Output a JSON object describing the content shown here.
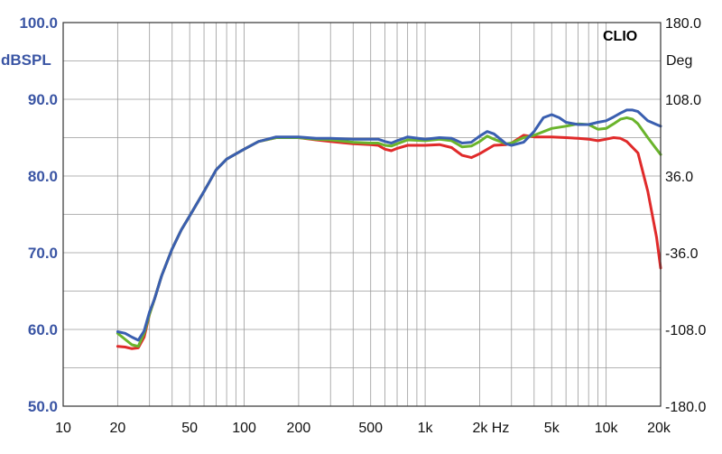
{
  "chart_data": {
    "type": "line",
    "brand_label": "CLIO",
    "x_scale": "log",
    "xlim": [
      10,
      20000
    ],
    "ylim": [
      50,
      100
    ],
    "y2lim": [
      -180,
      180
    ],
    "ylabel": "dBSPL",
    "y2label": "Deg",
    "grid": true,
    "x_ticks": [
      {
        "value": 10,
        "label": "10"
      },
      {
        "value": 20,
        "label": "20"
      },
      {
        "value": 50,
        "label": "50"
      },
      {
        "value": 100,
        "label": "100"
      },
      {
        "value": 200,
        "label": "200"
      },
      {
        "value": 500,
        "label": "500"
      },
      {
        "value": 1000,
        "label": "1k"
      },
      {
        "value": 2000,
        "label": "2k Hz"
      },
      {
        "value": 5000,
        "label": "5k"
      },
      {
        "value": 10000,
        "label": "10k"
      },
      {
        "value": 20000,
        "label": "20k"
      }
    ],
    "y_ticks": [
      {
        "value": 100,
        "label": "100.0"
      },
      {
        "value": 90,
        "label": "90.0"
      },
      {
        "value": 80,
        "label": "80.0"
      },
      {
        "value": 70,
        "label": "70.0"
      },
      {
        "value": 60,
        "label": "60.0"
      },
      {
        "value": 50,
        "label": "50.0"
      }
    ],
    "y2_ticks": [
      {
        "value": 180,
        "label": "180.0"
      },
      {
        "value": 108,
        "label": "108.0"
      },
      {
        "value": 36,
        "label": "36.0"
      },
      {
        "value": -36,
        "label": "-36.0"
      },
      {
        "value": -108,
        "label": "-108.0"
      },
      {
        "value": -180,
        "label": "-180.0"
      }
    ],
    "colors": {
      "grid": "#9a9a9a",
      "axis": "#333333",
      "left_axis_text": "#3a55a4"
    },
    "series": [
      {
        "color": "#e02a2a",
        "points": [
          [
            20,
            57.8
          ],
          [
            22,
            57.7
          ],
          [
            24,
            57.5
          ],
          [
            26,
            57.6
          ],
          [
            28,
            59
          ],
          [
            30,
            62
          ],
          [
            32,
            64
          ],
          [
            35,
            67
          ],
          [
            40,
            70.5
          ],
          [
            45,
            73
          ],
          [
            50,
            74.8
          ],
          [
            60,
            78
          ],
          [
            70,
            80.8
          ],
          [
            80,
            82.2
          ],
          [
            100,
            83.5
          ],
          [
            120,
            84.5
          ],
          [
            150,
            85
          ],
          [
            200,
            85
          ],
          [
            250,
            84.7
          ],
          [
            300,
            84.5
          ],
          [
            400,
            84.2
          ],
          [
            500,
            84.1
          ],
          [
            550,
            84
          ],
          [
            600,
            83.5
          ],
          [
            650,
            83.3
          ],
          [
            700,
            83.6
          ],
          [
            800,
            84
          ],
          [
            1000,
            84
          ],
          [
            1200,
            84.1
          ],
          [
            1400,
            83.7
          ],
          [
            1600,
            82.7
          ],
          [
            1800,
            82.4
          ],
          [
            2000,
            82.9
          ],
          [
            2400,
            84
          ],
          [
            2800,
            84.1
          ],
          [
            3000,
            84.3
          ],
          [
            3500,
            85.3
          ],
          [
            4000,
            85.1
          ],
          [
            5000,
            85.1
          ],
          [
            6000,
            85
          ],
          [
            7000,
            84.9
          ],
          [
            8000,
            84.8
          ],
          [
            9000,
            84.6
          ],
          [
            10000,
            84.8
          ],
          [
            11000,
            85
          ],
          [
            12000,
            84.9
          ],
          [
            13000,
            84.5
          ],
          [
            15000,
            83
          ],
          [
            17000,
            78
          ],
          [
            19000,
            72
          ],
          [
            20000,
            68
          ]
        ]
      },
      {
        "color": "#6ab42c",
        "points": [
          [
            20,
            59.5
          ],
          [
            22,
            58.7
          ],
          [
            24,
            58
          ],
          [
            26,
            57.8
          ],
          [
            28,
            59.5
          ],
          [
            30,
            62
          ],
          [
            32,
            64
          ],
          [
            35,
            67
          ],
          [
            40,
            70.5
          ],
          [
            45,
            73
          ],
          [
            50,
            74.8
          ],
          [
            60,
            78
          ],
          [
            70,
            80.8
          ],
          [
            80,
            82.2
          ],
          [
            100,
            83.5
          ],
          [
            120,
            84.5
          ],
          [
            150,
            85
          ],
          [
            200,
            85
          ],
          [
            250,
            84.8
          ],
          [
            300,
            84.7
          ],
          [
            400,
            84.4
          ],
          [
            500,
            84.3
          ],
          [
            550,
            84.3
          ],
          [
            600,
            84
          ],
          [
            650,
            83.9
          ],
          [
            700,
            84.2
          ],
          [
            800,
            84.7
          ],
          [
            1000,
            84.6
          ],
          [
            1200,
            84.8
          ],
          [
            1400,
            84.6
          ],
          [
            1600,
            83.8
          ],
          [
            1800,
            83.9
          ],
          [
            2000,
            84.5
          ],
          [
            2200,
            85.2
          ],
          [
            2400,
            84.8
          ],
          [
            2800,
            84.2
          ],
          [
            3000,
            84.3
          ],
          [
            3500,
            85
          ],
          [
            4000,
            85.3
          ],
          [
            5000,
            86.2
          ],
          [
            6000,
            86.5
          ],
          [
            7000,
            86.8
          ],
          [
            8000,
            86.7
          ],
          [
            9000,
            86.1
          ],
          [
            10000,
            86.2
          ],
          [
            11000,
            86.8
          ],
          [
            12000,
            87.4
          ],
          [
            13000,
            87.6
          ],
          [
            14000,
            87.4
          ],
          [
            15000,
            86.8
          ],
          [
            17000,
            85
          ],
          [
            19000,
            83.5
          ],
          [
            20000,
            82.8
          ]
        ]
      },
      {
        "color": "#3a5fb0",
        "points": [
          [
            20,
            59.7
          ],
          [
            22,
            59.5
          ],
          [
            24,
            59
          ],
          [
            26,
            58.6
          ],
          [
            28,
            59.8
          ],
          [
            30,
            62.3
          ],
          [
            32,
            64
          ],
          [
            35,
            67
          ],
          [
            40,
            70.5
          ],
          [
            45,
            73
          ],
          [
            50,
            74.8
          ],
          [
            60,
            78
          ],
          [
            70,
            80.8
          ],
          [
            80,
            82.2
          ],
          [
            100,
            83.5
          ],
          [
            120,
            84.5
          ],
          [
            150,
            85.1
          ],
          [
            200,
            85.1
          ],
          [
            250,
            84.9
          ],
          [
            300,
            84.9
          ],
          [
            400,
            84.8
          ],
          [
            500,
            84.8
          ],
          [
            550,
            84.8
          ],
          [
            600,
            84.5
          ],
          [
            650,
            84.3
          ],
          [
            700,
            84.6
          ],
          [
            800,
            85.1
          ],
          [
            1000,
            84.8
          ],
          [
            1200,
            85
          ],
          [
            1400,
            84.9
          ],
          [
            1600,
            84.3
          ],
          [
            1800,
            84.4
          ],
          [
            2000,
            85.2
          ],
          [
            2200,
            85.8
          ],
          [
            2400,
            85.5
          ],
          [
            2800,
            84.2
          ],
          [
            3000,
            84
          ],
          [
            3500,
            84.4
          ],
          [
            4000,
            85.8
          ],
          [
            4500,
            87.6
          ],
          [
            5000,
            88
          ],
          [
            5500,
            87.6
          ],
          [
            6000,
            87
          ],
          [
            7000,
            86.7
          ],
          [
            8000,
            86.7
          ],
          [
            9000,
            87
          ],
          [
            10000,
            87.2
          ],
          [
            11000,
            87.7
          ],
          [
            12000,
            88.2
          ],
          [
            13000,
            88.6
          ],
          [
            14000,
            88.6
          ],
          [
            15000,
            88.4
          ],
          [
            17000,
            87.2
          ],
          [
            19000,
            86.7
          ],
          [
            20000,
            86.5
          ]
        ]
      }
    ]
  }
}
